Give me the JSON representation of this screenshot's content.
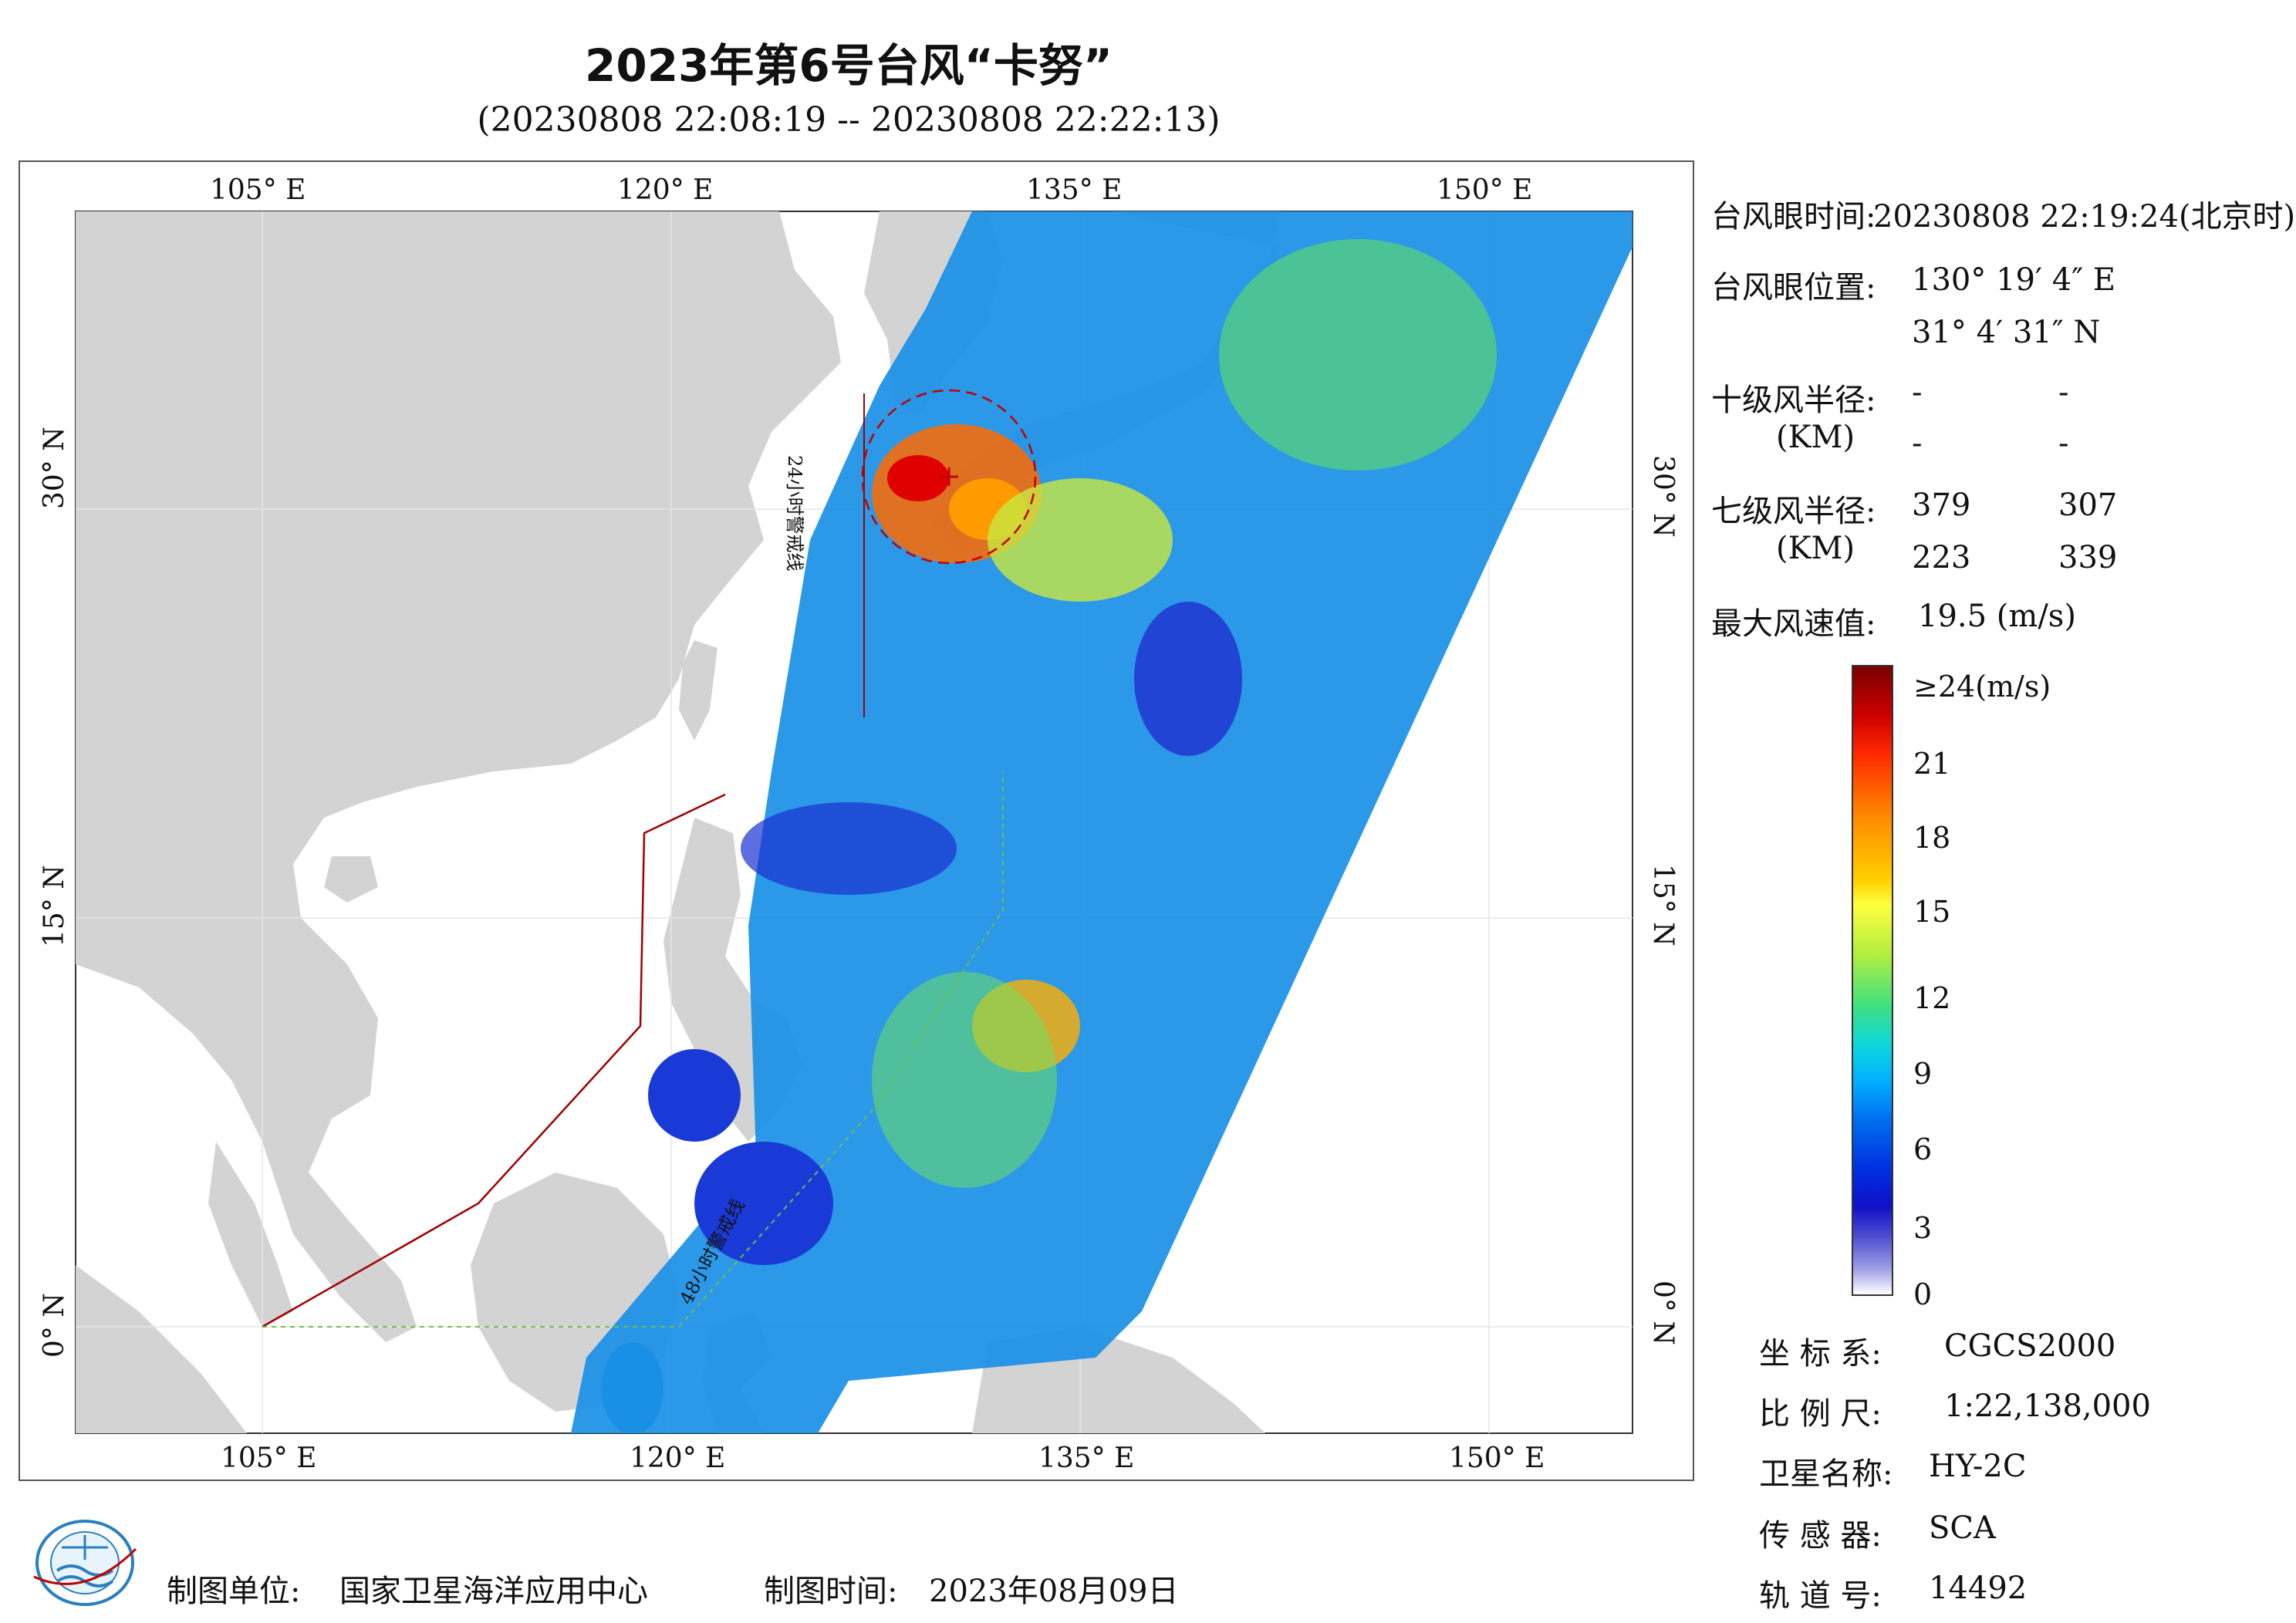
{
  "title": "2023年第6号台风“卡努”",
  "subtitle": "(20230808 22:08:19 -- 20230808 22:22:13)",
  "map": {
    "lon_labels": [
      "105° E",
      "120° E",
      "135° E",
      "150° E"
    ],
    "lat_labels": [
      "30° N",
      "15° N",
      "0° N"
    ],
    "track_labels": [
      "24小时警戒线",
      "48小时警戒线"
    ],
    "colors": {
      "land": "#d3d3d3",
      "sea": "#ffffff",
      "warning_line": "#a00000"
    }
  },
  "info": {
    "eye_time_label": "台风眼时间:",
    "eye_time_value": "20230808 22:19:24(北京时)",
    "eye_pos_label": "台风眼位置:",
    "eye_lon": "130° 19′ 4″ E",
    "eye_lat": "31° 4′ 31″ N",
    "r10_label": "十级风半径:",
    "r10_unit": "(KM)",
    "r10_values": [
      "-",
      "-",
      "-",
      "-"
    ],
    "r7_label": "七级风半径:",
    "r7_unit": "(KM)",
    "r7_values": [
      "379",
      "307",
      "223",
      "339"
    ],
    "max_wind_label": "最大风速值:",
    "max_wind_value": "19.5  (m/s)"
  },
  "legend": {
    "labels": [
      "≥24(m/s)",
      "21",
      "18",
      "15",
      "12",
      "9",
      "6",
      "3",
      "0"
    ]
  },
  "meta": {
    "crs_label": "坐 标 系:",
    "crs_value": "CGCS2000",
    "scale_label": "比 例 尺:",
    "scale_value": "1:22,138,000",
    "sat_label": "卫星名称:",
    "sat_value": "HY-2C",
    "sensor_label": "传 感 器:",
    "sensor_value": "SCA",
    "orbit_label": "轨 道 号:",
    "orbit_value": "14492"
  },
  "footer": {
    "producer_label": "制图单位:",
    "producer_value": "国家卫星海洋应用中心",
    "date_label": "制图时间:",
    "date_value": "2023年08月09日"
  }
}
